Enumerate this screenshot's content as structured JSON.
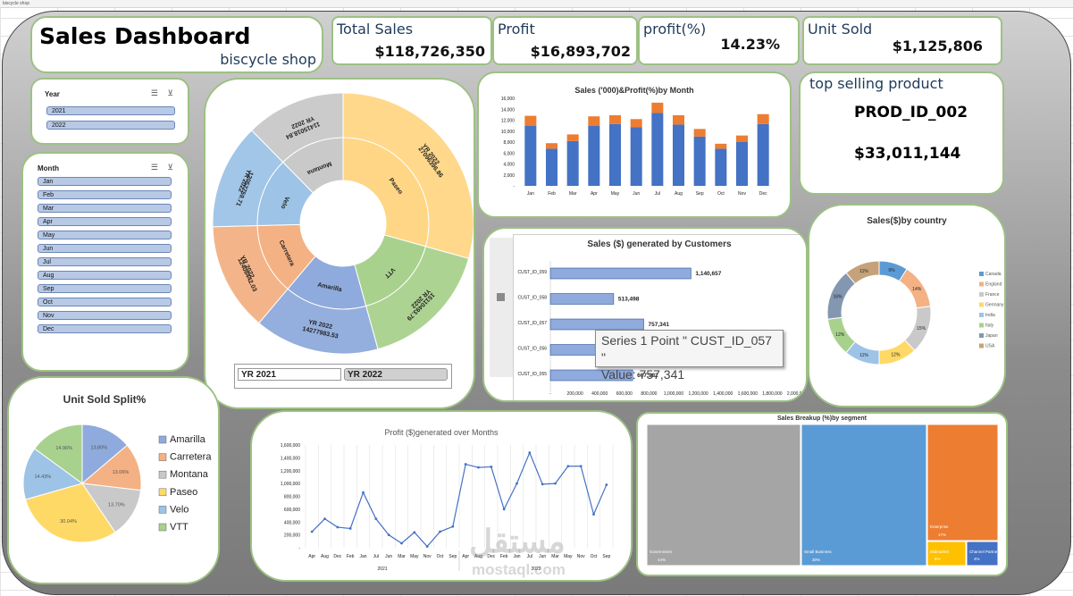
{
  "window": {
    "title": "biscycle shop"
  },
  "header": {
    "title": "Sales Dashboard",
    "subtitle": "biscycle shop"
  },
  "kpis": [
    {
      "label": "Total Sales",
      "value": "$118,726,350"
    },
    {
      "label": "Profit",
      "value": "$16,893,702"
    },
    {
      "label": "profit(%)",
      "value": "14.23%"
    },
    {
      "label": "Unit Sold",
      "value": "$1,125,806"
    }
  ],
  "top_product": {
    "title": "top selling product",
    "product": "PROD_ID_002",
    "value": "$33,011,144"
  },
  "year_slicer": {
    "title": "Year",
    "items": [
      "2021",
      "2022"
    ]
  },
  "month_slicer": {
    "title": "Month",
    "items": [
      "Jan",
      "Feb",
      "Mar",
      "Apr",
      "May",
      "Jun",
      "Jul",
      "Aug",
      "Sep",
      "Oct",
      "Nov",
      "Dec"
    ]
  },
  "sunburst_toggle": {
    "left": "YR 2021",
    "right": "YR 2022"
  },
  "tooltip": {
    "line1": "Series 1 Point \" CUST_ID_057 \"",
    "line2": "Value:  757,341"
  },
  "watermark": {
    "line1": "مستقل",
    "line2": "mostaql.com"
  },
  "chart_data": [
    {
      "id": "sunburst",
      "type": "pie",
      "center_label": "",
      "inner": [
        {
          "name": "Paseo",
          "value": 27096396.86,
          "color": "#ffd685"
        },
        {
          "name": "VTT",
          "value": 15110493.79,
          "color": "#a9d18e"
        },
        {
          "name": "Amarilla",
          "value": 14277983.53,
          "color": "#8faadc"
        },
        {
          "name": "Carretera",
          "value": 12408442.03,
          "color": "#f4b183"
        },
        {
          "name": "Velo",
          "value": 12052759.71,
          "color": "#9dc3e6"
        },
        {
          "name": "Montana",
          "value": 11415018.84,
          "color": "#c9c9c9"
        }
      ],
      "outer_labels": [
        "YR 2022",
        "27096396.86",
        "YR 2022",
        "15110493.79",
        "YR 2022",
        "14277983.53",
        "YR 2022",
        "12408442.03",
        "YR 2022",
        "12052759.71",
        "YR 2022",
        "11415018.84"
      ]
    },
    {
      "id": "sales_profit_month",
      "type": "bar",
      "title": "Sales ('000)&Profit(%)by Month",
      "categories": [
        "Jan",
        "Feb",
        "Mar",
        "Apr",
        "May",
        "Jun",
        "Jul",
        "Aug",
        "Sep",
        "Oct",
        "Nov",
        "Dec"
      ],
      "series": [
        {
          "values": [
            11000,
            6800,
            8200,
            11000,
            11300,
            10700,
            13300,
            11200,
            9000,
            6800,
            8000,
            11300
          ],
          "color": "#4472c4"
        },
        {
          "values": [
            1800,
            1000,
            1200,
            1700,
            1600,
            1500,
            1900,
            1700,
            1400,
            900,
            1200,
            1800
          ],
          "color": "#ed7d31"
        }
      ],
      "yticks": [
        "16,000",
        "14,000",
        "12,000",
        "10,000",
        "8,000",
        "6,000",
        "4,000",
        "2,000",
        "-"
      ],
      "ylim": [
        0,
        16000
      ]
    },
    {
      "id": "customer_sales",
      "type": "bar",
      "orientation": "horizontal",
      "title": "Sales ($) generated by Customers",
      "categories": [
        "CUST_ID_059",
        "CUST_ID_058",
        "CUST_ID_057",
        "CUST_ID_056",
        "CUST_ID_055"
      ],
      "values": [
        1140657,
        513498,
        757341,
        1104192,
        667982
      ],
      "labels": [
        "1,140,657",
        "513,498",
        "757,341",
        "1,104,192",
        "667,982"
      ],
      "xticks": [
        "-",
        "200,000",
        "400,000",
        "600,000",
        "800,000",
        "1,000,000",
        "1,200,000",
        "1,400,000",
        "1,600,000",
        "1,800,000",
        "2,000,000"
      ],
      "xlim": [
        0,
        2000000
      ],
      "color": "#4472c4"
    },
    {
      "id": "sales_by_country",
      "type": "pie",
      "title": "Sales($)by country",
      "categories": [
        "Canada",
        "England",
        "France",
        "Germany",
        "India",
        "Italy",
        "Japan",
        "USA"
      ],
      "values": [
        9,
        14,
        15,
        12,
        11,
        12,
        16,
        11
      ],
      "labels": [
        "9%",
        "14%",
        "15%",
        "12%",
        "11%",
        "12%",
        "16%",
        "11%"
      ],
      "colors": [
        "#5b9bd5",
        "#f4b183",
        "#c9c9c9",
        "#ffd966",
        "#9dc3e6",
        "#a9d18e",
        "#8497b0",
        "#c5a27a"
      ]
    },
    {
      "id": "unit_sold_split",
      "type": "pie",
      "title": "Unit Sold Split%",
      "categories": [
        "Amarilla",
        "Carretera",
        "Montana",
        "Paseo",
        "Velo",
        "VTT"
      ],
      "values": [
        13.8,
        13.06,
        13.7,
        30.04,
        14.43,
        14.96
      ],
      "labels": [
        "13.80%",
        "13.06%",
        "13.70%",
        "30.04%",
        "14.43%",
        "14.96%"
      ],
      "colors": [
        "#8faadc",
        "#f4b183",
        "#c9c9c9",
        "#ffd966",
        "#9dc3e6",
        "#a9d18e"
      ]
    },
    {
      "id": "profit_months",
      "type": "line",
      "title": "Profit ($)generated over Months",
      "categories": [
        "Apr",
        "Aug",
        "Dec",
        "Feb",
        "Jan",
        "Jul",
        "Jun",
        "Mar",
        "May",
        "Nov",
        "Oct",
        "Sep",
        "Apr",
        "Aug",
        "Dec",
        "Feb",
        "Jan",
        "Jul",
        "Jun",
        "Mar",
        "May",
        "Nov",
        "Oct",
        "Sep"
      ],
      "year_labels": [
        "2021",
        "2022"
      ],
      "values": [
        250000,
        450000,
        320000,
        300000,
        860000,
        450000,
        200000,
        70000,
        240000,
        20000,
        250000,
        330000,
        1300000,
        1250000,
        1260000,
        600000,
        1000000,
        1480000,
        990000,
        1000000,
        1270000,
        1270000,
        520000,
        980000
      ],
      "yticks": [
        "1,600,000",
        "1,400,000",
        "1,200,000",
        "1,000,000",
        "800,000",
        "600,000",
        "400,000",
        "200,000",
        "-"
      ],
      "ylim": [
        0,
        1600000
      ],
      "color": "#4472c4"
    },
    {
      "id": "segment_treemap",
      "type": "heatmap",
      "title": "Sales Breakup (%)by segment",
      "categories": [
        "Government",
        "Small Business",
        "Enterprise",
        "Midmarket",
        "Channel Partne..."
      ],
      "values": [
        44,
        30,
        17,
        5,
        4
      ],
      "labels": [
        "44%",
        "30%",
        "17%",
        "5%",
        "4%"
      ],
      "colors": [
        "#a5a5a5",
        "#5b9bd5",
        "#ed7d31",
        "#ffc000",
        "#4472c4"
      ]
    }
  ]
}
